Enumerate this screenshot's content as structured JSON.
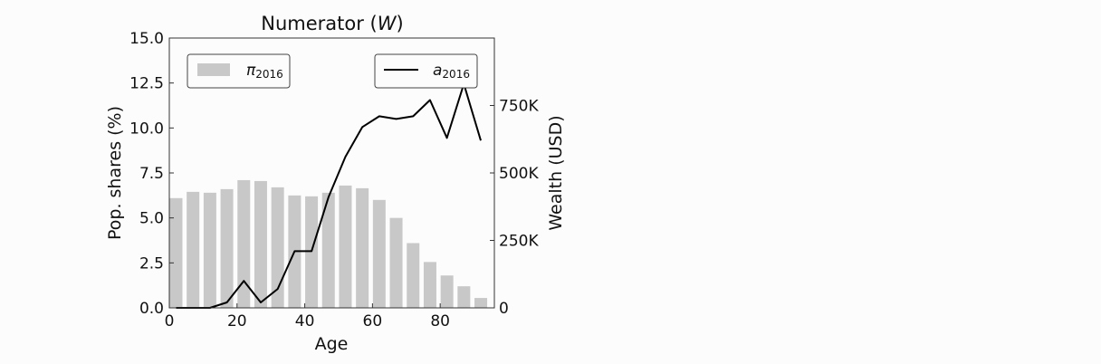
{
  "chart_data": {
    "type": "bar+line",
    "title": "Numerator (W)",
    "title_main": "Numerator (",
    "title_var": "W",
    "title_close": ")",
    "xlabel": "Age",
    "ylabel_left": "Pop. shares (%)",
    "ylabel_right": "Wealth (USD)",
    "xlim": [
      0,
      96
    ],
    "ylim_left": [
      0,
      15
    ],
    "ylim_right": [
      0,
      1000000
    ],
    "x_ticks": [
      "0",
      "20",
      "40",
      "60",
      "80"
    ],
    "x_tick_values": [
      0,
      20,
      40,
      60,
      80
    ],
    "y_left_ticks": [
      "0.0",
      "2.5",
      "5.0",
      "7.5",
      "10.0",
      "12.5",
      "15.0"
    ],
    "y_left_tick_values": [
      0,
      2.5,
      5,
      7.5,
      10,
      12.5,
      15
    ],
    "y_right_ticks": [
      "0",
      "250K",
      "500K",
      "750K"
    ],
    "y_right_tick_values": [
      0,
      250000,
      500000,
      750000
    ],
    "grid": false,
    "series": [
      {
        "name": "π2016",
        "name_base": "π",
        "name_sub": "2016",
        "type": "bar",
        "axis": "left",
        "color": "#c8c8c8",
        "x": [
          2,
          7,
          12,
          17,
          22,
          27,
          32,
          37,
          42,
          47,
          52,
          57,
          62,
          67,
          72,
          77,
          82,
          87,
          92
        ],
        "values": [
          6.1,
          6.45,
          6.4,
          6.6,
          7.1,
          7.05,
          6.7,
          6.25,
          6.2,
          6.4,
          6.8,
          6.65,
          6.0,
          5.0,
          3.6,
          2.55,
          1.8,
          1.2,
          0.55
        ]
      },
      {
        "name": "a2016",
        "name_base": "a",
        "name_sub": "2016",
        "type": "line",
        "axis": "right",
        "color": "#000000",
        "x": [
          2,
          7,
          12,
          17,
          22,
          27,
          32,
          37,
          42,
          47,
          52,
          57,
          62,
          67,
          72,
          77,
          82,
          87,
          92
        ],
        "values": [
          0,
          0,
          0,
          20000,
          100000,
          20000,
          70000,
          210000,
          210000,
          410000,
          560000,
          670000,
          710000,
          700000,
          710000,
          770000,
          630000,
          830000,
          620000
        ]
      }
    ],
    "legend_left_position": "upper-left",
    "legend_right_position": "upper-right"
  }
}
